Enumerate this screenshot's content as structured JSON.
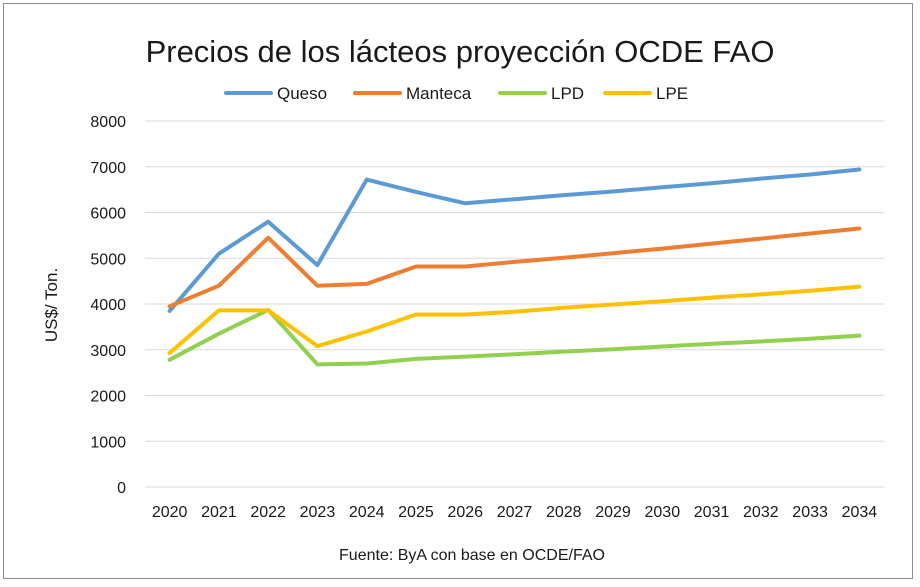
{
  "chart_data": {
    "type": "line",
    "title": "Precios de los lácteos proyección OCDE FAO",
    "xlabel": "",
    "ylabel": "US$/ Ton.",
    "source": "Fuente: ByA con base en OCDE/FAO",
    "ylim": [
      0,
      8000
    ],
    "yticks": [
      0,
      1000,
      2000,
      3000,
      4000,
      5000,
      6000,
      7000,
      8000
    ],
    "categories": [
      "2020",
      "2021",
      "2022",
      "2023",
      "2024",
      "2025",
      "2026",
      "2027",
      "2028",
      "2029",
      "2030",
      "2031",
      "2032",
      "2033",
      "2034"
    ],
    "grid": true,
    "legend_position": "top",
    "series": [
      {
        "name": "Queso",
        "color": "#5b9bd5",
        "values": [
          3850,
          5100,
          5800,
          4850,
          6720,
          6450,
          6200,
          6290,
          6380,
          6460,
          6550,
          6640,
          6740,
          6830,
          6940
        ]
      },
      {
        "name": "Manteca",
        "color": "#ed7d31",
        "values": [
          3950,
          4400,
          5450,
          4400,
          4440,
          4820,
          4820,
          4920,
          5010,
          5110,
          5210,
          5320,
          5430,
          5540,
          5650
        ]
      },
      {
        "name": "LPD",
        "color": "#92d050",
        "values": [
          2780,
          3350,
          3870,
          2680,
          2700,
          2800,
          2850,
          2900,
          2960,
          3010,
          3070,
          3130,
          3180,
          3240,
          3310
        ]
      },
      {
        "name": "LPE",
        "color": "#ffc000",
        "values": [
          2930,
          3860,
          3860,
          3080,
          3400,
          3770,
          3770,
          3830,
          3920,
          3990,
          4060,
          4140,
          4210,
          4290,
          4380
        ]
      }
    ]
  }
}
